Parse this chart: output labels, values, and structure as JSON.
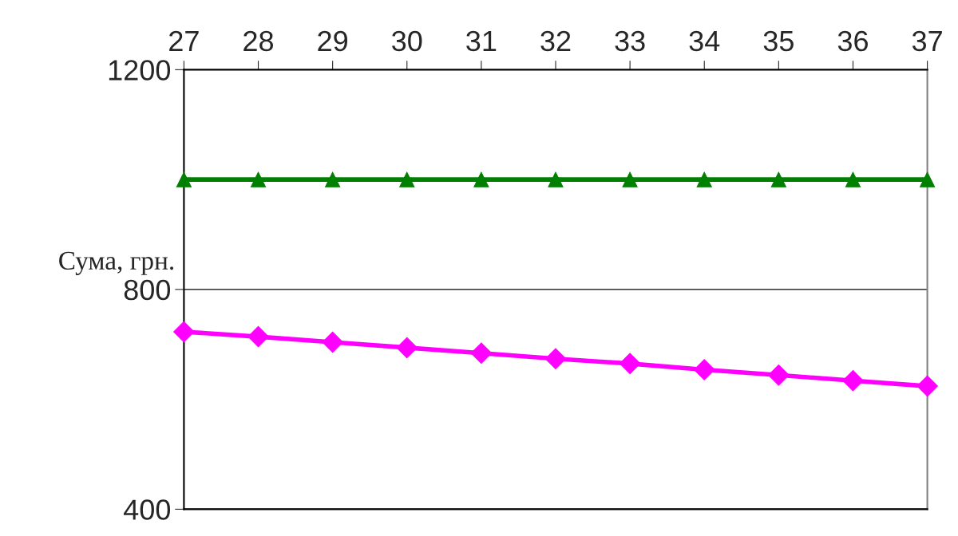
{
  "chart_data": {
    "type": "line",
    "ylabel": "Сума, грн.",
    "x": [
      27,
      28,
      29,
      30,
      31,
      32,
      33,
      34,
      35,
      36,
      37
    ],
    "xlim": [
      27,
      37
    ],
    "xticks": [
      27,
      28,
      29,
      30,
      31,
      32,
      33,
      34,
      35,
      36,
      37
    ],
    "ylim": [
      400,
      1200
    ],
    "yticks": [
      400,
      800,
      1200
    ],
    "grid": "y",
    "series": [
      {
        "color": "#008000",
        "marker": "triangle",
        "values": [
          1000,
          1000,
          1000,
          1000,
          1000,
          1000,
          1000,
          1000,
          1000,
          1000,
          1000
        ]
      },
      {
        "color": "#ff00ff",
        "marker": "diamond",
        "values": [
          723,
          714,
          704,
          694,
          684,
          674,
          665,
          654,
          644,
          634,
          624
        ]
      }
    ]
  }
}
